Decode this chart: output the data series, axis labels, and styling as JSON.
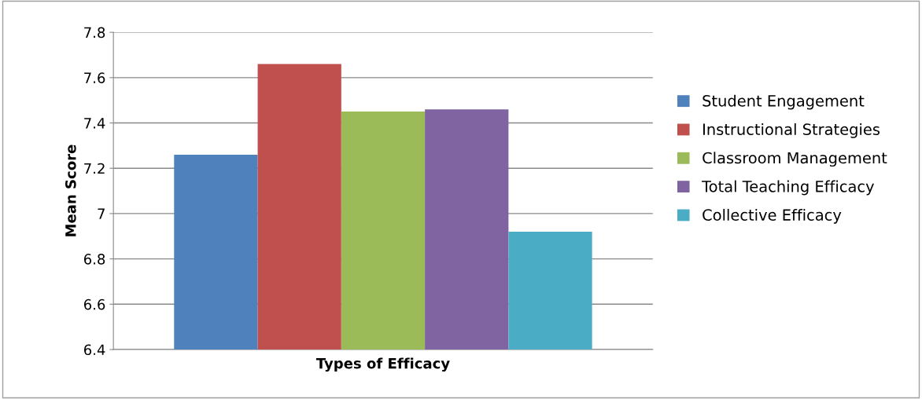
{
  "chart_data": {
    "type": "bar",
    "xlabel": "Types of Efficacy",
    "ylabel": "Mean Score",
    "categories": [
      null
    ],
    "series": [
      {
        "name": "Student Engagement",
        "color": "#4f81bd",
        "values": [
          7.26
        ]
      },
      {
        "name": "Instructional Strategies",
        "color": "#c0504d",
        "values": [
          7.66
        ]
      },
      {
        "name": "Classroom Management",
        "color": "#9bbb59",
        "values": [
          7.45
        ]
      },
      {
        "name": "Total Teaching Efficacy",
        "color": "#8064a2",
        "values": [
          7.46
        ]
      },
      {
        "name": "Collective Efficacy",
        "color": "#4bacc6",
        "values": [
          6.92
        ]
      }
    ],
    "ylim": [
      6.4,
      7.8
    ],
    "yticks": [
      6.4,
      6.6,
      6.8,
      7,
      7.2,
      7.4,
      7.6,
      7.8
    ],
    "grid": "y",
    "legend": "right"
  }
}
